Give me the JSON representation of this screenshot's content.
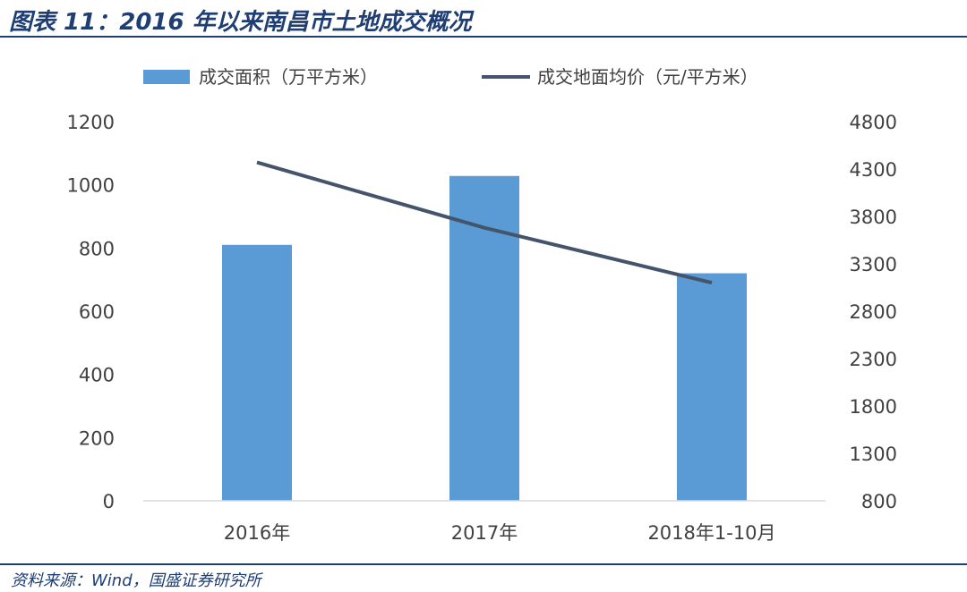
{
  "header": {
    "title": "图表 11：2016 年以来南昌市土地成交概况"
  },
  "footer": {
    "source": "资料来源：Wind，国盛证券研究所"
  },
  "colors": {
    "bar": "#5b9bd5",
    "line": "#44546a",
    "rule": "#1f3e74",
    "text": "#404040"
  },
  "chart_data": {
    "type": "bar",
    "categories": [
      "2016年",
      "2017年",
      "2018年1-10月"
    ],
    "series": [
      {
        "name": "成交面积（万平方米）",
        "type": "bar",
        "axis": "left",
        "values": [
          810,
          1028,
          720
        ]
      },
      {
        "name": "成交地面均价（元/平方米）",
        "type": "line",
        "axis": "right",
        "values": [
          4370,
          3680,
          3100
        ]
      }
    ],
    "y_left": {
      "ylim": [
        0,
        1200
      ],
      "ticks": [
        "0",
        "200",
        "400",
        "600",
        "800",
        "1000",
        "1200"
      ]
    },
    "y_right": {
      "ylim": [
        800,
        4800
      ],
      "ticks": [
        "800",
        "1300",
        "1800",
        "2300",
        "2800",
        "3300",
        "3800",
        "4300",
        "4800"
      ]
    },
    "grid": false,
    "legend_position": "top"
  }
}
